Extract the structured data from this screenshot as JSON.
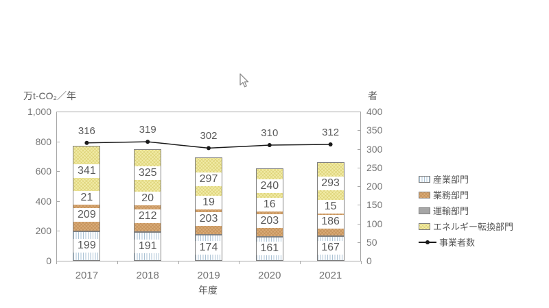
{
  "page": {
    "background": "#ffffff"
  },
  "chart_data": {
    "type": "bar",
    "subtype": "stacked-bar-with-line",
    "categories": [
      "2017",
      "2018",
      "2019",
      "2020",
      "2021"
    ],
    "bar_series": [
      {
        "name": "産業部門",
        "values": [
          199,
          191,
          174,
          161,
          167
        ],
        "pattern": "vertical-stripes",
        "fill": "#ffffff",
        "hatch": "#aac2d4"
      },
      {
        "name": "業務部門",
        "values": [
          209,
          212,
          203,
          203,
          186
        ],
        "pattern": "diagonal-crosshatch",
        "fill": "#d9aa76",
        "hatch": "#b07b42"
      },
      {
        "name": "運輸部門",
        "values": [
          21,
          20,
          19,
          16,
          15
        ],
        "pattern": "solid",
        "fill": "#a6a6a6",
        "hatch": "#a6a6a6"
      },
      {
        "name": "エネルギー転換部門",
        "values": [
          341,
          325,
          297,
          240,
          293
        ],
        "pattern": "diagonal-crosshatch",
        "fill": "#f1eba6",
        "hatch": "#cbbc4e"
      }
    ],
    "line_series": {
      "name": "事業者数",
      "values": [
        316,
        319,
        302,
        310,
        312
      ],
      "color": "#1a1a1a",
      "axis": "right"
    },
    "left_axis": {
      "title": "万t-CO₂／年",
      "min": 0,
      "max": 1000,
      "step": 200,
      "tick_labels": [
        "0",
        "200",
        "400",
        "600",
        "800",
        "1,000"
      ]
    },
    "right_axis": {
      "title": "者",
      "min": 0,
      "max": 400,
      "step": 50,
      "tick_labels": [
        "0",
        "50",
        "100",
        "150",
        "200",
        "250",
        "300",
        "350",
        "400"
      ]
    },
    "x_axis": {
      "title": "年度"
    },
    "legend_position": "right",
    "grid": "off",
    "bar_value_labels": "on-white-boxes",
    "line_value_labels": "above-points"
  }
}
